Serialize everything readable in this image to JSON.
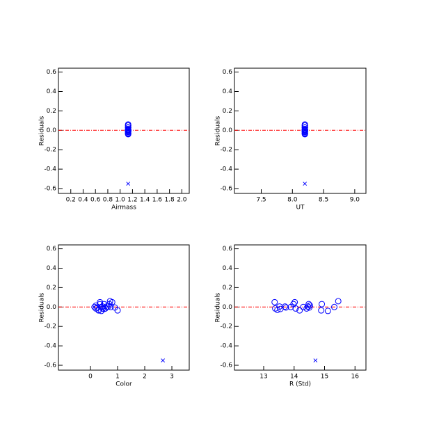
{
  "chart_data": [
    {
      "type": "scatter",
      "xlabel": "Airmass",
      "ylabel": "Residuals",
      "xlim": [
        0,
        2.12
      ],
      "ylim": [
        -0.65,
        0.64
      ],
      "xticks": [
        0.2,
        0.4,
        0.6,
        0.8,
        {
          "value": 1,
          "label": "1.0"
        },
        1.2,
        1.4,
        1.6,
        1.8,
        {
          "value": 2,
          "label": "2.0"
        }
      ],
      "yticks": [
        -0.6,
        -0.4,
        -0.2,
        {
          "value": 0,
          "label": "0.0"
        },
        0.2,
        0.4,
        0.6
      ],
      "reference_line": {
        "value": 0,
        "color": "#ff0000"
      },
      "series": [
        {
          "marker": "circle",
          "color": "#0000ff",
          "x": [
            1.13,
            1.13,
            1.13,
            1.13,
            1.13,
            1.13,
            1.13,
            1.13,
            1.13,
            1.13,
            1.13,
            1.13,
            1.13,
            1.13,
            1.13,
            1.13,
            1.13,
            1.13,
            1.13,
            1.13,
            1.13,
            1.13,
            1.13
          ],
          "values": [
            0.05,
            -0.015,
            -0.03,
            0.005,
            -0.02,
            0.005,
            -0.005,
            0.0,
            0.03,
            0.05,
            -0.015,
            -0.035,
            0.0,
            -0.015,
            0.005,
            0.03,
            -0.005,
            0.015,
            -0.035,
            0.03,
            -0.04,
            0.0,
            0.06
          ]
        },
        {
          "marker": "x",
          "color": "#0000ff",
          "x": [
            1.13
          ],
          "values": [
            -0.55
          ]
        }
      ]
    },
    {
      "type": "scatter",
      "xlabel": "UT",
      "ylabel": "Residuals",
      "xlim": [
        7.07,
        9.18
      ],
      "ylim": [
        -0.65,
        0.64
      ],
      "xticks": [
        7.5,
        {
          "value": 8,
          "label": "8.0"
        },
        8.5,
        {
          "value": 9,
          "label": "9.0"
        }
      ],
      "yticks": [
        -0.6,
        -0.4,
        -0.2,
        {
          "value": 0,
          "label": "0.0"
        },
        0.2,
        0.4,
        0.6
      ],
      "reference_line": {
        "value": 0,
        "color": "#ff0000"
      },
      "series": [
        {
          "marker": "circle",
          "color": "#0000ff",
          "x": [
            8.2,
            8.2,
            8.2,
            8.2,
            8.2,
            8.2,
            8.2,
            8.2,
            8.2,
            8.2,
            8.2,
            8.2,
            8.2,
            8.2,
            8.2,
            8.2,
            8.2,
            8.2,
            8.2,
            8.2,
            8.2,
            8.2,
            8.2
          ],
          "values": [
            0.05,
            -0.015,
            -0.03,
            0.005,
            -0.02,
            0.005,
            -0.005,
            0.0,
            0.03,
            0.05,
            -0.015,
            -0.035,
            0.0,
            -0.015,
            0.005,
            0.03,
            -0.005,
            0.015,
            -0.035,
            0.03,
            -0.04,
            0.0,
            0.06
          ]
        },
        {
          "marker": "x",
          "color": "#0000ff",
          "x": [
            8.2
          ],
          "values": [
            -0.55
          ]
        }
      ]
    },
    {
      "type": "scatter",
      "xlabel": "Color",
      "ylabel": "Residuals",
      "xlim": [
        -1.18,
        3.64
      ],
      "ylim": [
        -0.65,
        0.64
      ],
      "xticks": [
        0,
        1,
        2,
        3
      ],
      "yticks": [
        -0.6,
        -0.4,
        -0.2,
        {
          "value": 0,
          "label": "0.0"
        },
        0.2,
        0.4,
        0.6
      ],
      "reference_line": {
        "value": 0,
        "color": "#ff0000"
      },
      "series": [
        {
          "marker": "circle",
          "color": "#0000ff",
          "x": [
            0.35,
            0.2,
            0.3,
            0.45,
            0.5,
            0.6,
            0.25,
            0.4,
            0.7,
            0.8,
            0.55,
            0.3,
            0.15,
            0.45,
            0.65,
            0.35,
            0.9,
            0.2,
            1.0,
            0.5,
            0.4,
            0.75,
            0.72
          ],
          "values": [
            0.05,
            -0.015,
            -0.03,
            0.005,
            -0.02,
            0.005,
            -0.005,
            0.0,
            0.03,
            0.05,
            -0.015,
            -0.035,
            0.0,
            -0.015,
            0.005,
            0.03,
            -0.005,
            0.015,
            -0.035,
            0.03,
            -0.04,
            0.0,
            0.06
          ]
        },
        {
          "marker": "x",
          "color": "#0000ff",
          "x": [
            2.67
          ],
          "values": [
            -0.55
          ]
        }
      ]
    },
    {
      "type": "scatter",
      "xlabel": "R (Std)",
      "ylabel": "Residuals",
      "xlim": [
        12.04,
        16.36
      ],
      "ylim": [
        -0.65,
        0.64
      ],
      "xticks": [
        13,
        14,
        15,
        16
      ],
      "yticks": [
        -0.6,
        -0.4,
        -0.2,
        {
          "value": 0,
          "label": "0.0"
        },
        0.2,
        0.4,
        0.6
      ],
      "reference_line": {
        "value": 0,
        "color": "#ff0000"
      },
      "series": [
        {
          "marker": "circle",
          "color": "#0000ff",
          "x": [
            13.36,
            13.38,
            13.45,
            13.52,
            13.55,
            13.7,
            13.73,
            13.89,
            13.98,
            14.02,
            14.05,
            14.18,
            14.3,
            14.41,
            14.45,
            14.48,
            14.5,
            14.52,
            14.89,
            14.91,
            15.11,
            15.32,
            15.45
          ],
          "values": [
            0.05,
            -0.015,
            -0.03,
            0.005,
            -0.02,
            0.005,
            -0.005,
            0.0,
            0.03,
            0.05,
            -0.015,
            -0.035,
            0.0,
            -0.015,
            0.005,
            0.03,
            -0.005,
            0.015,
            -0.035,
            0.03,
            -0.04,
            0.0,
            0.06
          ]
        },
        {
          "marker": "x",
          "color": "#0000ff",
          "x": [
            14.7
          ],
          "values": [
            -0.55
          ]
        }
      ]
    }
  ]
}
